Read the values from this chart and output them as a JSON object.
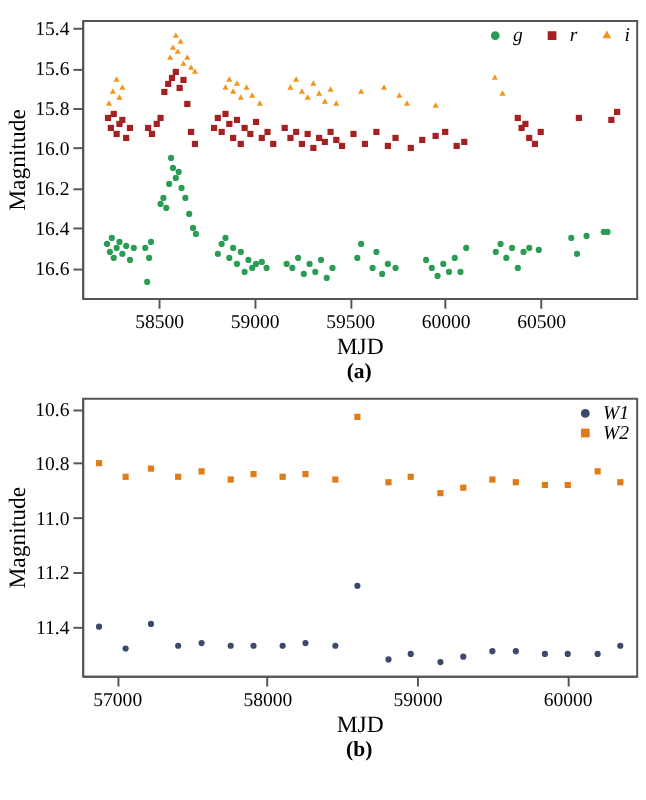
{
  "chart_data": [
    {
      "type": "scatter",
      "xlabel": "MJD",
      "ylabel": "Magnitude",
      "annotations": [
        "(a)"
      ],
      "xlim": [
        58100,
        61000
      ],
      "ylim": [
        16.75,
        15.36
      ],
      "xticks": [
        58500,
        59000,
        59500,
        60000,
        60500
      ],
      "yticks": [
        15.4,
        15.6,
        15.8,
        {
          "value": 16.0,
          "label": "16.0"
        },
        16.2,
        16.4,
        16.6
      ],
      "grid": false,
      "legend": "top right",
      "series": [
        {
          "name": "g",
          "color": "#2a9d55",
          "marker": "circle",
          "x": [
            58230,
            58245,
            58255,
            58265,
            58280,
            58295,
            58310,
            58330,
            58350,
            58370,
            58430,
            58440,
            58450,
            58460,
            58510,
            58525,
            58540,
            58555,
            58565,
            58575,
            58590,
            58605,
            58620,
            58640,
            58660,
            58680,
            58695,
            58810,
            58830,
            58850,
            58870,
            58890,
            58910,
            58930,
            58950,
            58970,
            58990,
            59010,
            59040,
            59065,
            59170,
            59200,
            59230,
            59260,
            59290,
            59320,
            59350,
            59380,
            59410,
            59540,
            59560,
            59620,
            59640,
            59670,
            59700,
            59740,
            59900,
            59930,
            59960,
            59990,
            60020,
            60050,
            60080,
            60110,
            60265,
            60290,
            60320,
            60350,
            60380,
            60410,
            60440,
            60490,
            60660,
            60690,
            60740,
            60830,
            60850
          ],
          "values": [
            16.48,
            16.52,
            16.45,
            16.55,
            16.5,
            16.47,
            16.53,
            16.49,
            16.56,
            16.5,
            16.5,
            16.67,
            16.55,
            16.47,
            16.28,
            16.25,
            16.3,
            16.18,
            16.05,
            16.1,
            16.15,
            16.12,
            16.2,
            16.25,
            16.33,
            16.4,
            16.43,
            16.53,
            16.48,
            16.45,
            16.55,
            16.5,
            16.58,
            16.52,
            16.62,
            16.56,
            16.6,
            16.58,
            16.57,
            16.6,
            16.58,
            16.6,
            16.55,
            16.63,
            16.58,
            16.62,
            16.56,
            16.65,
            16.6,
            16.55,
            16.48,
            16.6,
            16.52,
            16.63,
            16.58,
            16.6,
            16.56,
            16.6,
            16.64,
            16.58,
            16.62,
            16.55,
            16.62,
            16.5,
            16.52,
            16.48,
            16.55,
            16.5,
            16.6,
            16.52,
            16.5,
            16.51,
            16.45,
            16.53,
            16.44,
            16.42,
            16.42
          ]
        },
        {
          "name": "r",
          "color": "#a52020",
          "marker": "square",
          "x": [
            58235,
            58250,
            58265,
            58280,
            58295,
            58310,
            58330,
            58350,
            58445,
            58465,
            58490,
            58510,
            58530,
            58550,
            58570,
            58590,
            58610,
            58630,
            58650,
            58670,
            58690,
            58790,
            58810,
            58830,
            58850,
            58870,
            58890,
            58910,
            58930,
            58950,
            58980,
            59010,
            59040,
            59070,
            59100,
            59160,
            59190,
            59220,
            59250,
            59280,
            59310,
            59340,
            59370,
            59400,
            59430,
            59460,
            59520,
            59580,
            59640,
            59700,
            59740,
            59820,
            59880,
            59950,
            60000,
            60060,
            60100,
            60380,
            60400,
            60420,
            60440,
            60470,
            60500,
            60700,
            60870,
            60900
          ],
          "values": [
            15.85,
            15.9,
            15.83,
            15.93,
            15.88,
            15.86,
            15.95,
            15.9,
            15.9,
            15.93,
            15.88,
            15.85,
            15.72,
            15.68,
            15.65,
            15.62,
            15.7,
            15.66,
            15.78,
            15.92,
            15.98,
            15.9,
            15.85,
            15.92,
            15.83,
            15.88,
            15.95,
            15.86,
            15.98,
            15.9,
            15.93,
            15.87,
            15.95,
            15.92,
            15.98,
            15.9,
            15.95,
            15.92,
            15.98,
            15.93,
            16.0,
            15.95,
            15.97,
            15.92,
            15.96,
            15.99,
            15.93,
            15.98,
            15.92,
            15.99,
            15.95,
            16.0,
            15.96,
            15.94,
            15.92,
            15.99,
            15.97,
            15.85,
            15.9,
            15.88,
            15.95,
            15.98,
            15.92,
            15.85,
            15.86,
            15.82
          ]
        },
        {
          "name": "i",
          "color": "#f0961e",
          "marker": "triangle",
          "x": [
            58240,
            58260,
            58280,
            58295,
            58310,
            58560,
            58575,
            58590,
            58600,
            58615,
            58630,
            58650,
            58670,
            58690,
            58850,
            58870,
            58890,
            58910,
            58930,
            58960,
            58990,
            59030,
            59190,
            59220,
            59250,
            59280,
            59310,
            59340,
            59370,
            59400,
            59430,
            59560,
            59680,
            59760,
            59800,
            59950,
            60260,
            60300
          ],
          "values": [
            15.78,
            15.72,
            15.66,
            15.75,
            15.7,
            15.55,
            15.5,
            15.44,
            15.52,
            15.47,
            15.58,
            15.55,
            15.6,
            15.62,
            15.7,
            15.66,
            15.72,
            15.68,
            15.75,
            15.7,
            15.74,
            15.78,
            15.7,
            15.66,
            15.72,
            15.75,
            15.68,
            15.73,
            15.77,
            15.71,
            15.78,
            15.72,
            15.7,
            15.74,
            15.78,
            15.79,
            15.65,
            15.73
          ]
        }
      ]
    },
    {
      "type": "scatter",
      "xlabel": "MJD",
      "ylabel": "Magnitude",
      "annotations": [
        "(b)"
      ],
      "xlim": [
        56770,
        60460
      ],
      "ylim": [
        11.58,
        10.56
      ],
      "xticks": [
        57000,
        58000,
        59000,
        60000
      ],
      "yticks": [
        10.6,
        10.8,
        {
          "value": 11.0,
          "label": "11.0"
        },
        11.2,
        11.4
      ],
      "grid": false,
      "legend": "top right",
      "series": [
        {
          "name": "W1",
          "color": "#3b4a6b",
          "marker": "circle",
          "x": [
            56882,
            57059,
            57228,
            57409,
            57565,
            57759,
            57911,
            58105,
            58257,
            58456,
            58603,
            58810,
            58958,
            59156,
            59308,
            59502,
            59658,
            59852,
            60004,
            60203,
            60354
          ],
          "values": [
            11.4,
            11.48,
            11.39,
            11.47,
            11.46,
            11.47,
            11.47,
            11.47,
            11.46,
            11.47,
            11.25,
            11.52,
            11.5,
            11.53,
            11.51,
            11.49,
            11.49,
            11.5,
            11.5,
            11.5,
            11.47
          ]
        },
        {
          "name": "W2",
          "color": "#e07b1a",
          "marker": "square",
          "x": [
            56882,
            57059,
            57228,
            57409,
            57565,
            57759,
            57911,
            58105,
            58257,
            58456,
            58603,
            58810,
            58958,
            59156,
            59308,
            59502,
            59658,
            59852,
            60004,
            60203,
            60354
          ],
          "values": [
            10.8,
            10.85,
            10.82,
            10.85,
            10.83,
            10.86,
            10.84,
            10.85,
            10.84,
            10.86,
            10.63,
            10.87,
            10.85,
            10.91,
            10.89,
            10.86,
            10.87,
            10.88,
            10.88,
            10.83,
            10.87
          ]
        }
      ]
    }
  ]
}
